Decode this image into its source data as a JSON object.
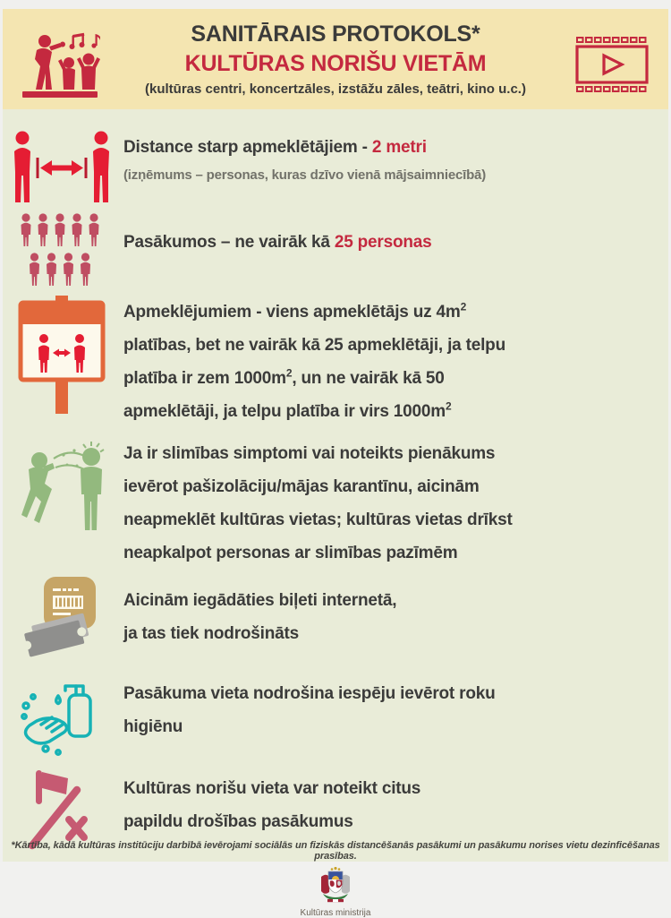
{
  "header": {
    "title": "SANITĀRAIS PROTOKOLS*",
    "subtitle": "KULTŪRAS NORIŠU VIETĀM",
    "note": "(kultūras centri, koncertzāles, izstāžu zāles, teātri, kino u.c.)",
    "left_icon": "concert-audience-icon",
    "right_icon": "film-strip-icon"
  },
  "items": [
    {
      "icon": "distance-icon",
      "lines": [
        [
          {
            "t": "Distance starp apmeklētājiem - "
          },
          {
            "t": "2 metri",
            "red": true
          }
        ]
      ],
      "sub": "(izņēmums – personas, kuras dzīvo vienā mājsaimniecībā)"
    },
    {
      "icon": "crowd-icon",
      "lines": [
        [
          {
            "t": "Pasākumos – ne vairāk kā "
          },
          {
            "t": "25 personas",
            "red": true
          }
        ]
      ]
    },
    {
      "icon": "distance-sign-icon",
      "lines": [
        [
          {
            "t": "Apmeklējumiem - viens apmeklētājs uz 4m"
          },
          {
            "t": "2",
            "sup": true
          }
        ],
        [
          {
            "t": "platības, bet ne vairāk kā 25 apmeklētāji, ja telpu"
          }
        ],
        [
          {
            "t": "platība ir zem 1000m"
          },
          {
            "t": "2",
            "sup": true
          },
          {
            "t": ", un ne vairāk kā 50"
          }
        ],
        [
          {
            "t": "apmeklētāji, ja telpu platība ir virs 1000m"
          },
          {
            "t": "2",
            "sup": true
          }
        ]
      ]
    },
    {
      "icon": "sneeze-illness-icon",
      "lines": [
        [
          {
            "t": "Ja ir slimības simptomi vai noteikts pienākums"
          }
        ],
        [
          {
            "t": "ievērot pašizolāciju/mājas karantīnu, aicinām"
          }
        ],
        [
          {
            "t": "neapmeklēt kultūras vietas; kultūras vietas drīkst"
          }
        ],
        [
          {
            "t": "neapkalpot personas ar slimības pazīmēm"
          }
        ]
      ]
    },
    {
      "icon": "online-ticket-icon",
      "lines": [
        [
          {
            "t": "Aicinām iegādāties biļeti internetā,"
          }
        ],
        [
          {
            "t": "ja tas tiek nodrošināts"
          }
        ]
      ]
    },
    {
      "icon": "hand-hygiene-icon",
      "lines": [
        [
          {
            "t": "Pasākuma vieta nodrošina iespēju ievērot roku"
          }
        ],
        [
          {
            "t": "higiēnu"
          }
        ]
      ]
    },
    {
      "icon": "flag-rules-icon",
      "lines": [
        [
          {
            "t": "Kultūras norišu vieta var noteikt citus"
          }
        ],
        [
          {
            "t": "papildu drošības pasākumus"
          }
        ]
      ]
    }
  ],
  "footnote": "*Kārtība, kādā kultūras institūciju darbībā ievērojami sociālās un fiziskās distancēšanās pasākumi un pasākumu norises vietu dezinficēšanas prasības.",
  "footer": {
    "logo": "latvia-coat-of-arms",
    "ministry": "Kultūras ministrija"
  },
  "colors": {
    "header_bg": "#f4e5b1",
    "body_bg": "#e9ecd8",
    "crimson": "#c4293f",
    "bright_red": "#e51d33",
    "dark_text": "#3b3b3a",
    "gray_subtext": "#72726a",
    "orange": "#e2683b",
    "muted_red": "#bf4e62",
    "green": "#93b97e",
    "tan": "#c6a566",
    "ticket_gray": "#8f8f8d",
    "teal": "#16b2b5",
    "pink": "#c65a72"
  }
}
